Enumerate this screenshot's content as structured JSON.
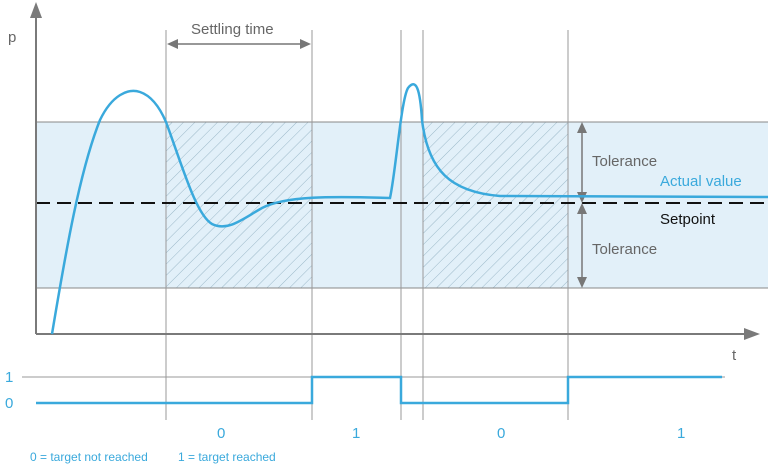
{
  "axes": {
    "y_label": "p",
    "x_label": "t"
  },
  "annotations": {
    "settling_time": "Settling time",
    "tolerance_upper": "Tolerance",
    "tolerance_lower": "Tolerance",
    "actual_value": "Actual value",
    "setpoint": "Setpoint"
  },
  "signal": {
    "level_high": "1",
    "level_low": "0",
    "segment_values": [
      "0",
      "1",
      "0",
      "1"
    ]
  },
  "legend": {
    "zero": "0 = target not reached",
    "one": "1 = target reached"
  },
  "colors": {
    "curve": "#3aa9dc",
    "tolerance_band": "#e2f0f9",
    "axis": "#7a7a7a",
    "setpoint_line": "#111111"
  }
}
